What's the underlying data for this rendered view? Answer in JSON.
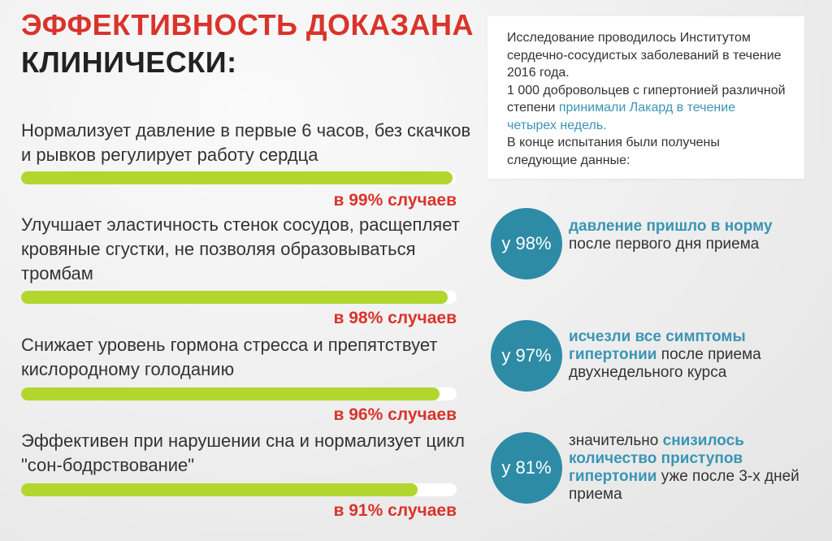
{
  "title": {
    "line1": "ЭФФЕКТИВНОСТЬ ДОКАЗАНА",
    "line2": "КЛИНИЧЕСКИ:"
  },
  "benefits": [
    {
      "text": "Нормализует давление в первые 6 часов, без скачков и рывков регулирует работу сердца",
      "percent": 99,
      "label": "в 99% случаев"
    },
    {
      "text": "Улучшает эластичность стенок сосудов, расщепляет кровяные сгустки, не позволяя образовываться тромбам",
      "percent": 98,
      "label": "в 98% случаев"
    },
    {
      "text": "Снижает уровень гормона стресса и препятствует кислородному голоданию",
      "percent": 96,
      "label": "в 96% случаев"
    },
    {
      "text": "Эффективен при нарушении сна и нормализует цикл \"сон-бодрствование\"",
      "percent": 91,
      "label": "в 91% случаев"
    }
  ],
  "study": {
    "p1": "Исследование проводилось Институтом сердечно-сосудистых заболеваний в течение 2016 года.",
    "p2_a": "1 000 добровольцев с гипертонией различной степени ",
    "p2_hl": "принимали Лакард в течение четырех недель.",
    "p3": "В конце испытания были получены следующие данные:"
  },
  "stats": [
    {
      "value": "у 98%",
      "pre": "",
      "hl": "давление пришло в норму",
      "post": " после первого дня приема"
    },
    {
      "value": "у 97%",
      "pre": "",
      "hl": "исчезли все симптомы гипертонии",
      "post": " после приема двухнедельного курса"
    },
    {
      "value": "у 81%",
      "pre": "значительно ",
      "hl": "снизилось количество приступов гипертонии",
      "post": " уже после 3-х дней приема"
    }
  ],
  "colors": {
    "accent_red": "#d9342b",
    "bar_green": "#b3d62e",
    "circle_blue": "#2d8ba6",
    "highlight_blue": "#3a95b4"
  }
}
